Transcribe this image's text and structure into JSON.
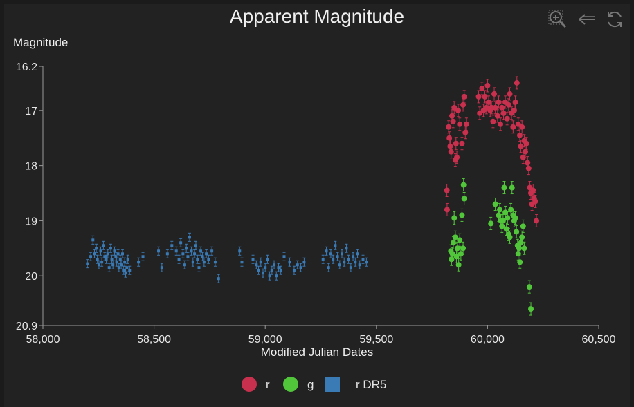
{
  "chart_data": {
    "type": "scatter",
    "title": "Apparent Magnitude",
    "xlabel": "Modified Julian Dates",
    "ylabel": "Magnitude",
    "xlim": [
      58000,
      60500
    ],
    "ylim": [
      20.9,
      16.2
    ],
    "y_inverted": true,
    "x_ticks": [
      58000,
      58500,
      59000,
      59500,
      60000,
      60500
    ],
    "x_tick_labels": [
      "58,000",
      "58,500",
      "59,000",
      "59,500",
      "60,000",
      "60,500"
    ],
    "y_ticks": [
      16.2,
      17,
      18,
      19,
      20,
      20.9
    ],
    "y_tick_labels": [
      "16.2",
      "17",
      "18",
      "19",
      "20",
      "20.9"
    ],
    "legend_position": "bottom-center",
    "series": [
      {
        "name": "r",
        "color": "#c8304e",
        "marker": "circle",
        "points": [
          [
            59817,
            18.45
          ],
          [
            59818,
            18.8
          ],
          [
            59825,
            17.3
          ],
          [
            59828,
            17.5
          ],
          [
            59832,
            17.65
          ],
          [
            59836,
            17.75
          ],
          [
            59840,
            17.1
          ],
          [
            59845,
            17.2
          ],
          [
            59850,
            16.95
          ],
          [
            59855,
            17.9
          ],
          [
            59858,
            17.6
          ],
          [
            59862,
            17.85
          ],
          [
            59868,
            17.0
          ],
          [
            59875,
            17.25
          ],
          [
            59885,
            17.6
          ],
          [
            59890,
            16.9
          ],
          [
            59895,
            16.75
          ],
          [
            59900,
            17.4
          ],
          [
            59905,
            17.25
          ],
          [
            59960,
            16.75
          ],
          [
            59965,
            17.05
          ],
          [
            59975,
            16.6
          ],
          [
            59982,
            17.0
          ],
          [
            59988,
            16.75
          ],
          [
            59995,
            16.95
          ],
          [
            60000,
            16.55
          ],
          [
            60005,
            16.85
          ],
          [
            60012,
            17.0
          ],
          [
            60018,
            16.95
          ],
          [
            60025,
            17.2
          ],
          [
            60030,
            16.7
          ],
          [
            60035,
            16.95
          ],
          [
            60045,
            17.1
          ],
          [
            60050,
            16.85
          ],
          [
            60058,
            17.25
          ],
          [
            60065,
            16.95
          ],
          [
            60072,
            17.05
          ],
          [
            60080,
            16.85
          ],
          [
            60088,
            17.15
          ],
          [
            60095,
            16.9
          ],
          [
            60100,
            16.7
          ],
          [
            60108,
            17.05
          ],
          [
            60115,
            17.3
          ],
          [
            60120,
            17.0
          ],
          [
            60125,
            16.85
          ],
          [
            60132,
            16.5
          ],
          [
            60138,
            17.25
          ],
          [
            60145,
            17.45
          ],
          [
            60150,
            17.65
          ],
          [
            60155,
            17.3
          ],
          [
            60160,
            17.85
          ],
          [
            60165,
            17.55
          ],
          [
            60170,
            17.75
          ],
          [
            60175,
            17.6
          ],
          [
            60180,
            17.95
          ],
          [
            60185,
            18.05
          ],
          [
            60190,
            18.4
          ],
          [
            60195,
            18.5
          ],
          [
            60200,
            18.7
          ],
          [
            60205,
            18.45
          ],
          [
            60210,
            18.6
          ],
          [
            60215,
            18.65
          ],
          [
            60220,
            19.0
          ]
        ]
      },
      {
        "name": "g",
        "color": "#52c63b",
        "marker": "circle",
        "points": [
          [
            59835,
            19.55
          ],
          [
            59838,
            19.7
          ],
          [
            59842,
            19.6
          ],
          [
            59846,
            19.4
          ],
          [
            59850,
            18.95
          ],
          [
            59855,
            19.3
          ],
          [
            59860,
            19.65
          ],
          [
            59865,
            19.5
          ],
          [
            59870,
            19.8
          ],
          [
            59875,
            19.35
          ],
          [
            59880,
            19.6
          ],
          [
            59885,
            18.9
          ],
          [
            59890,
            19.5
          ],
          [
            59895,
            18.6
          ],
          [
            59892,
            18.35
          ],
          [
            60015,
            19.05
          ],
          [
            60035,
            18.7
          ],
          [
            60050,
            18.9
          ],
          [
            60055,
            18.8
          ],
          [
            60060,
            19.0
          ],
          [
            60065,
            19.1
          ],
          [
            60070,
            19.0
          ],
          [
            60075,
            18.4
          ],
          [
            60080,
            18.85
          ],
          [
            60085,
            19.15
          ],
          [
            60090,
            18.95
          ],
          [
            60095,
            19.25
          ],
          [
            60100,
            19.3
          ],
          [
            60105,
            18.8
          ],
          [
            60110,
            18.4
          ],
          [
            60115,
            18.9
          ],
          [
            60120,
            19.0
          ],
          [
            60125,
            18.95
          ],
          [
            60130,
            19.2
          ],
          [
            60135,
            19.45
          ],
          [
            60138,
            19.6
          ],
          [
            60142,
            19.5
          ],
          [
            60146,
            19.75
          ],
          [
            60150,
            19.4
          ],
          [
            60155,
            19.3
          ],
          [
            60160,
            19.1
          ],
          [
            60165,
            19.5
          ],
          [
            60188,
            20.2
          ],
          [
            60195,
            20.6
          ]
        ]
      },
      {
        "name": "r DR5",
        "color": "#3a7ab5",
        "marker": "square",
        "points": [
          [
            58200,
            19.78
          ],
          [
            58215,
            19.65
          ],
          [
            58225,
            19.35
          ],
          [
            58232,
            19.6
          ],
          [
            58240,
            19.5
          ],
          [
            58245,
            19.7
          ],
          [
            58252,
            19.8
          ],
          [
            58260,
            19.55
          ],
          [
            58265,
            19.75
          ],
          [
            58272,
            19.45
          ],
          [
            58278,
            19.65
          ],
          [
            58285,
            19.7
          ],
          [
            58292,
            19.6
          ],
          [
            58298,
            19.85
          ],
          [
            58305,
            19.5
          ],
          [
            58310,
            19.7
          ],
          [
            58315,
            19.8
          ],
          [
            58322,
            19.55
          ],
          [
            58328,
            19.65
          ],
          [
            58332,
            19.75
          ],
          [
            58338,
            19.6
          ],
          [
            58342,
            19.85
          ],
          [
            58348,
            19.7
          ],
          [
            58352,
            19.8
          ],
          [
            58358,
            19.6
          ],
          [
            58362,
            19.9
          ],
          [
            58368,
            19.75
          ],
          [
            58372,
            19.95
          ],
          [
            58378,
            19.85
          ],
          [
            58382,
            19.7
          ],
          [
            58390,
            19.9
          ],
          [
            58430,
            19.75
          ],
          [
            58450,
            19.65
          ],
          [
            58520,
            19.55
          ],
          [
            58535,
            19.85
          ],
          [
            58560,
            19.6
          ],
          [
            58580,
            19.45
          ],
          [
            58600,
            19.55
          ],
          [
            58612,
            19.7
          ],
          [
            58620,
            19.4
          ],
          [
            58630,
            19.6
          ],
          [
            58638,
            19.8
          ],
          [
            58645,
            19.5
          ],
          [
            58652,
            19.65
          ],
          [
            58660,
            19.3
          ],
          [
            58668,
            19.55
          ],
          [
            58675,
            19.75
          ],
          [
            58682,
            19.6
          ],
          [
            58688,
            19.45
          ],
          [
            58695,
            19.7
          ],
          [
            58702,
            19.85
          ],
          [
            58710,
            19.55
          ],
          [
            58718,
            19.65
          ],
          [
            58725,
            19.75
          ],
          [
            58735,
            19.6
          ],
          [
            58745,
            19.7
          ],
          [
            58760,
            19.55
          ],
          [
            58775,
            19.75
          ],
          [
            58790,
            20.05
          ],
          [
            58885,
            19.55
          ],
          [
            58895,
            19.75
          ],
          [
            58945,
            19.7
          ],
          [
            58960,
            19.8
          ],
          [
            58970,
            19.9
          ],
          [
            58980,
            19.75
          ],
          [
            58990,
            19.95
          ],
          [
            59000,
            19.85
          ],
          [
            59010,
            19.7
          ],
          [
            59020,
            20.0
          ],
          [
            59030,
            19.9
          ],
          [
            59040,
            19.8
          ],
          [
            59050,
            20.0
          ],
          [
            59060,
            19.85
          ],
          [
            59070,
            19.9
          ],
          [
            59085,
            19.65
          ],
          [
            59110,
            19.75
          ],
          [
            59130,
            19.9
          ],
          [
            59145,
            19.8
          ],
          [
            59160,
            19.85
          ],
          [
            59175,
            19.75
          ],
          [
            59260,
            19.7
          ],
          [
            59275,
            19.55
          ],
          [
            59285,
            19.85
          ],
          [
            59295,
            19.6
          ],
          [
            59305,
            19.7
          ],
          [
            59315,
            19.45
          ],
          [
            59325,
            19.65
          ],
          [
            59335,
            19.8
          ],
          [
            59345,
            19.6
          ],
          [
            59355,
            19.75
          ],
          [
            59365,
            19.5
          ],
          [
            59375,
            19.7
          ],
          [
            59385,
            19.85
          ],
          [
            59395,
            19.65
          ],
          [
            59405,
            19.75
          ],
          [
            59415,
            19.6
          ],
          [
            59425,
            19.8
          ],
          [
            59440,
            19.7
          ],
          [
            59455,
            19.75
          ]
        ]
      }
    ]
  },
  "toolbar": {
    "zoom_icon": "zoom-in-icon",
    "back_icon": "arrow-left-icon",
    "reset_icon": "refresh-icon"
  },
  "legend": {
    "items": [
      {
        "label": "r",
        "color": "#c8304e",
        "shape": "circle"
      },
      {
        "label": "g",
        "color": "#52c63b",
        "shape": "circle"
      },
      {
        "label": "r DR5",
        "color": "#3a7ab5",
        "shape": "square"
      }
    ]
  }
}
